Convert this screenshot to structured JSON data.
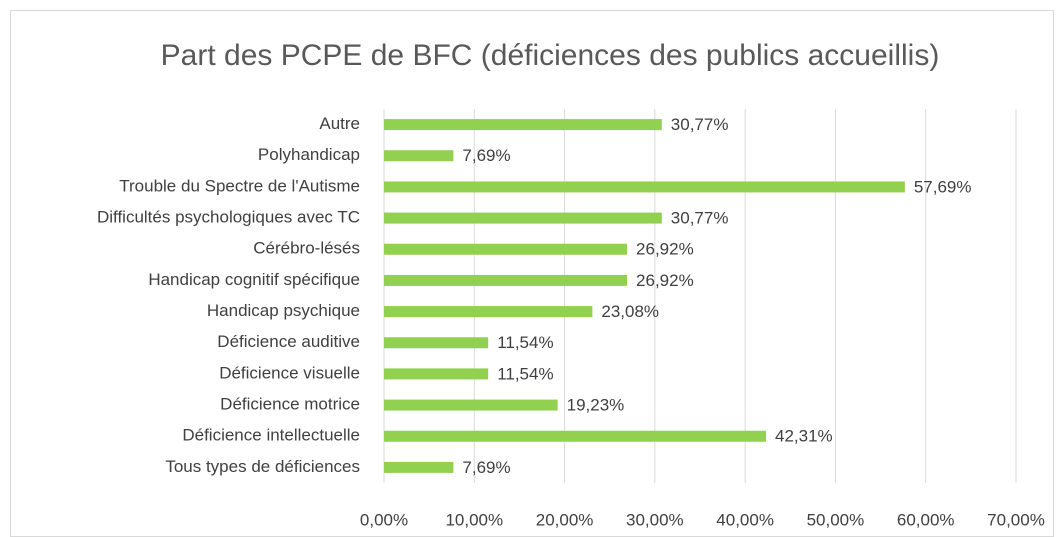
{
  "chart_data": {
    "type": "bar",
    "orientation": "horizontal",
    "title": "Part des PCPE de BFC (déficiences des publics accueillis)",
    "categories": [
      "Autre",
      "Polyhandicap",
      "Trouble du Spectre de l'Autisme",
      "Difficultés psychologiques avec TC",
      "Cérébro-lésés",
      "Handicap cognitif spécifique",
      "Handicap psychique",
      "Déficience auditive",
      "Déficience visuelle",
      "Déficience motrice",
      "Déficience intellectuelle",
      "Tous types de déficiences"
    ],
    "values": [
      30.77,
      7.69,
      57.69,
      30.77,
      26.92,
      26.92,
      23.08,
      11.54,
      11.54,
      19.23,
      42.31,
      7.69
    ],
    "value_labels": [
      "30,77%",
      "7,69%",
      "57,69%",
      "30,77%",
      "26,92%",
      "26,92%",
      "23,08%",
      "11,54%",
      "11,54%",
      "19,23%",
      "42,31%",
      "7,69%"
    ],
    "color": "#92d050",
    "xlim": [
      0,
      70
    ],
    "xticks": [
      {
        "value": 0,
        "label": "0,00%"
      },
      {
        "value": 10,
        "label": "10,00%"
      },
      {
        "value": 20,
        "label": "20,00%"
      },
      {
        "value": 30,
        "label": "30,00%"
      },
      {
        "value": 40,
        "label": "40,00%"
      },
      {
        "value": 50,
        "label": "50,00%"
      },
      {
        "value": 60,
        "label": "60,00%"
      },
      {
        "value": 70,
        "label": "70,00%"
      }
    ],
    "grid": true
  }
}
